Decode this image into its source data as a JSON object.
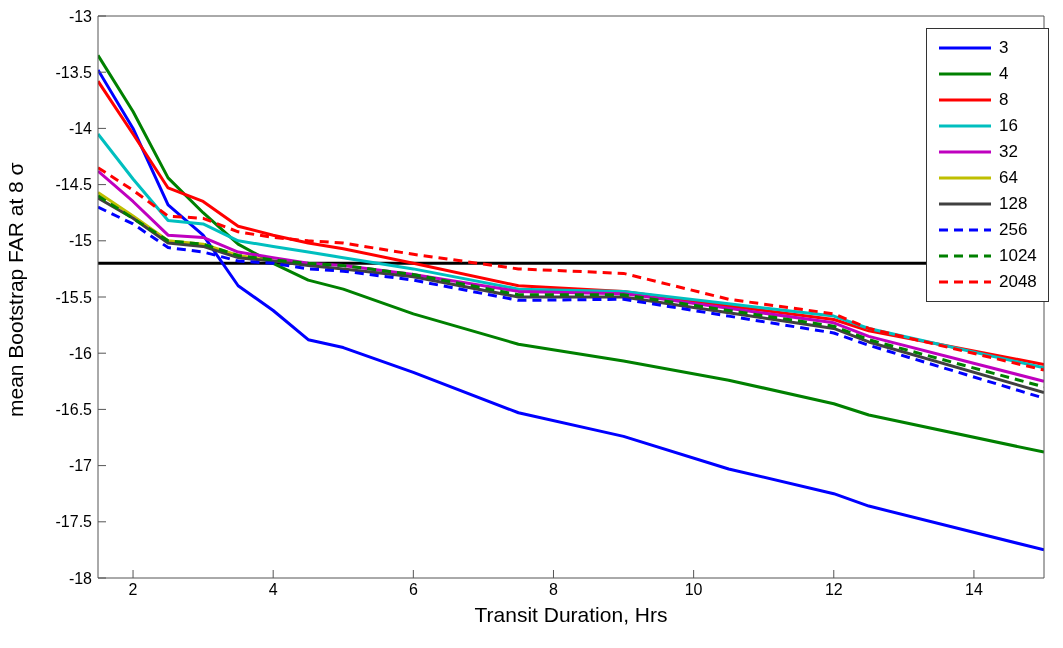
{
  "chart_data": {
    "type": "line",
    "xlabel": "Transit Duration, Hrs",
    "ylabel": "mean Bootstrap FAR at 8 σ",
    "x": [
      1.5,
      2,
      2.5,
      3,
      3.5,
      4,
      4.5,
      5,
      6,
      7.5,
      9,
      10.5,
      12,
      12.5,
      15
    ],
    "series": [
      {
        "name": "3",
        "color": "#0000ff",
        "values": [
          -13.48,
          -14.0,
          -14.68,
          -14.95,
          -15.4,
          -15.62,
          -15.88,
          -15.95,
          -16.17,
          -16.53,
          -16.74,
          -17.03,
          -17.25,
          -17.36,
          -17.75
        ]
      },
      {
        "name": "4",
        "color": "#008000",
        "values": [
          -13.35,
          -13.85,
          -14.44,
          -14.75,
          -15.03,
          -15.2,
          -15.35,
          -15.43,
          -15.65,
          -15.92,
          -16.07,
          -16.24,
          -16.45,
          -16.55,
          -16.88
        ]
      },
      {
        "name": "8",
        "color": "#ff0000",
        "values": [
          -13.58,
          -14.05,
          -14.53,
          -14.65,
          -14.87,
          -14.95,
          -15.02,
          -15.07,
          -15.2,
          -15.4,
          -15.45,
          -15.58,
          -15.7,
          -15.8,
          -16.1
        ]
      },
      {
        "name": "16",
        "color": "#00bfbf",
        "values": [
          -14.05,
          -14.45,
          -14.82,
          -14.85,
          -15.0,
          -15.05,
          -15.1,
          -15.15,
          -15.25,
          -15.43,
          -15.45,
          -15.56,
          -15.67,
          -15.78,
          -16.13
        ]
      },
      {
        "name": "32",
        "color": "#bf00bf",
        "values": [
          -14.38,
          -14.65,
          -14.95,
          -14.97,
          -15.1,
          -15.15,
          -15.2,
          -15.22,
          -15.3,
          -15.45,
          -15.47,
          -15.6,
          -15.73,
          -15.85,
          -16.25
        ]
      },
      {
        "name": "64",
        "color": "#bfbf00",
        "values": [
          -14.57,
          -14.78,
          -15.0,
          -15.03,
          -15.13,
          -15.18,
          null,
          null,
          null,
          null,
          null,
          null,
          null,
          null,
          null
        ]
      },
      {
        "name": "128",
        "color": "#404040",
        "values": [
          -14.62,
          -14.8,
          -15.02,
          -15.05,
          -15.15,
          -15.18,
          -15.22,
          -15.25,
          -15.32,
          -15.5,
          -15.5,
          -15.64,
          -15.78,
          -15.9,
          -16.35
        ]
      },
      {
        "name": "256",
        "color": "#0000ff",
        "line_style": "dashed",
        "values": [
          -14.7,
          -14.85,
          -15.06,
          -15.1,
          -15.18,
          -15.2,
          -15.25,
          -15.27,
          -15.35,
          -15.53,
          -15.52,
          -15.67,
          -15.82,
          -15.93,
          -16.4
        ]
      },
      {
        "name": "1024",
        "color": "#008000",
        "line_style": "dashed",
        "values": [
          -14.6,
          -14.8,
          -15.0,
          -15.03,
          -15.13,
          -15.17,
          -15.2,
          -15.22,
          -15.3,
          -15.48,
          -15.48,
          -15.62,
          -15.76,
          -15.88,
          -16.3
        ]
      },
      {
        "name": "2048",
        "color": "#ff0000",
        "line_style": "dashed",
        "values": [
          -14.35,
          -14.55,
          -14.78,
          -14.8,
          -14.92,
          -14.97,
          -15.0,
          -15.02,
          -15.12,
          -15.25,
          -15.29,
          -15.52,
          -15.65,
          -15.78,
          -16.15
        ]
      }
    ],
    "ref_lines": [
      {
        "axis": "y",
        "value": -15.2,
        "color": "#000000"
      }
    ],
    "xlim": [
      1.5,
      15
    ],
    "xticks": [
      2,
      4,
      6,
      8,
      10,
      12,
      14
    ],
    "ylim": [
      -18,
      -13
    ],
    "yticks": [
      -18,
      -17.5,
      -17,
      -16.5,
      -16,
      -15.5,
      -15,
      -14.5,
      -14,
      -13.5,
      -13
    ],
    "legend": "top right",
    "marker": "none",
    "line_style": "solid",
    "grid": false
  }
}
